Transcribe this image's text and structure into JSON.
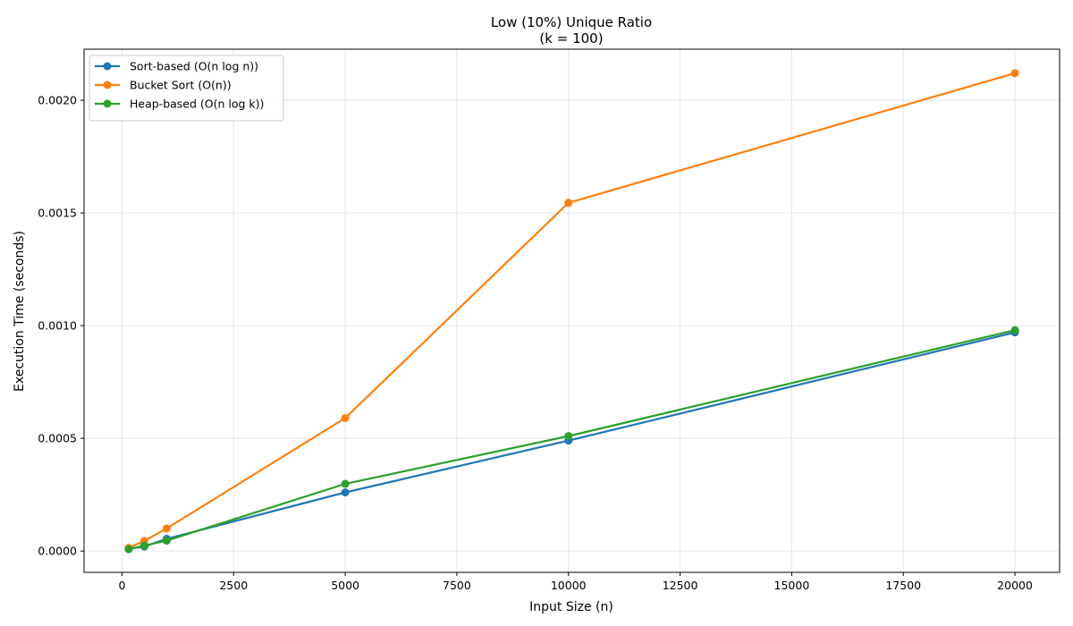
{
  "chart_data": {
    "type": "line",
    "title": "Low (10%) Unique Ratio",
    "subtitle": "(k = 100)",
    "xlabel": "Input Size (n)",
    "ylabel": "Execution Time (seconds)",
    "xlim": [
      -850,
      21000
    ],
    "ylim": [
      -9.46e-05,
      0.0022265
    ],
    "xticks": [
      0,
      2500,
      5000,
      7500,
      10000,
      12500,
      15000,
      17500,
      20000
    ],
    "xtick_labels": [
      "0",
      "2500",
      "5000",
      "7500",
      "10000",
      "12500",
      "15000",
      "17500",
      "20000"
    ],
    "yticks": [
      0,
      0.0005,
      0.001,
      0.0015,
      0.002
    ],
    "ytick_labels": [
      "0.0000",
      "0.0005",
      "0.0010",
      "0.0015",
      "0.0020"
    ],
    "grid": true,
    "legend_position": "top-left",
    "series": [
      {
        "name": "Sort-based (O(n log n))",
        "color": "#1f77b4",
        "x": [
          150,
          500,
          1000,
          5000,
          10000,
          20000
        ],
        "values": [
          1e-05,
          2e-05,
          5.4e-05,
          0.00026,
          0.00049,
          0.00097
        ]
      },
      {
        "name": "Bucket Sort (O(n))",
        "color": "#ff7f0e",
        "x": [
          150,
          500,
          1000,
          5000,
          10000,
          20000
        ],
        "values": [
          1.4e-05,
          4.5e-05,
          0.0001,
          0.00059,
          0.001545,
          0.00212
        ]
      },
      {
        "name": "Heap-based (O(n log k))",
        "color": "#2ca02c",
        "x": [
          150,
          500,
          1000,
          5000,
          10000,
          20000
        ],
        "values": [
          8e-06,
          2.4e-05,
          4.6e-05,
          0.000298,
          0.00051,
          0.00098
        ]
      }
    ]
  }
}
